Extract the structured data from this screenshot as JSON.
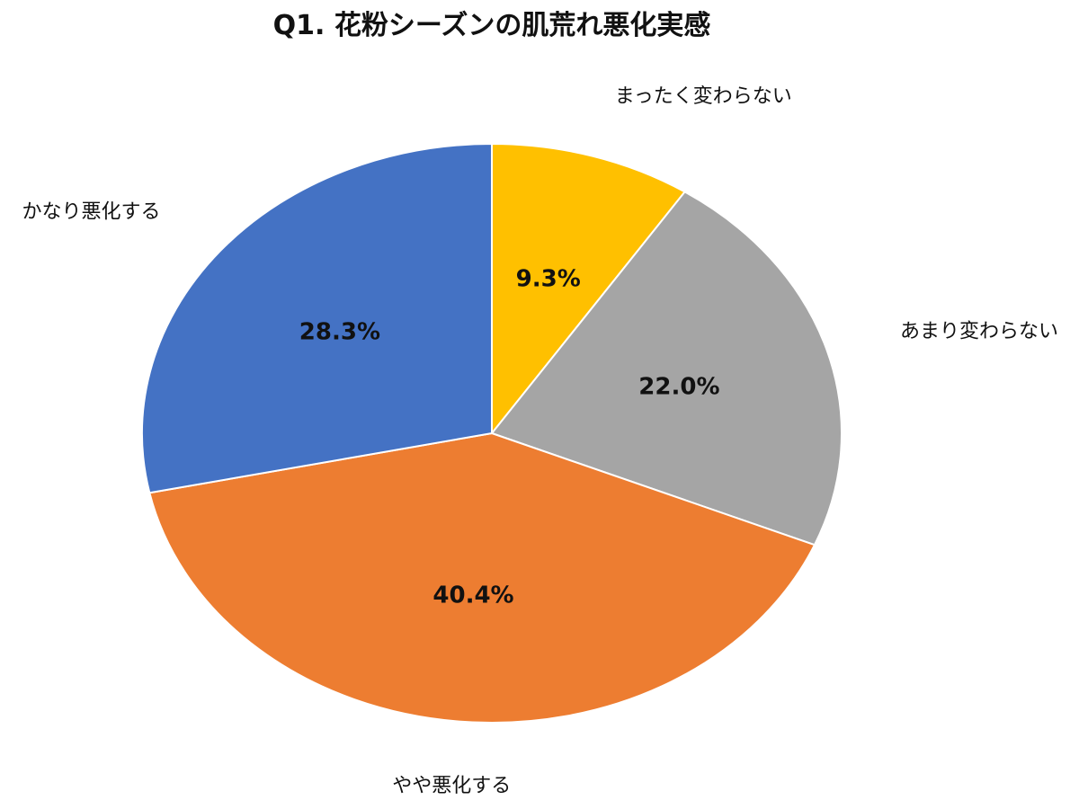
{
  "chart_data": {
    "type": "pie",
    "title": "Q1. 花粉シーズンの肌荒れ悪化実感",
    "slices": [
      {
        "label": "まったく変わらない",
        "value": 9.3,
        "display": "9.3%",
        "color": "#FFC000"
      },
      {
        "label": "あまり変わらない",
        "value": 22.0,
        "display": "22.0%",
        "color": "#A5A5A5"
      },
      {
        "label": "やや悪化する",
        "value": 40.4,
        "display": "40.4%",
        "color": "#ED7D31"
      },
      {
        "label": "かなり悪化する",
        "value": 28.3,
        "display": "28.3%",
        "color": "#4472C4"
      }
    ],
    "start_angle": "12 o'clock",
    "direction": "clockwise",
    "legend": "none",
    "data_labels": "inside",
    "category_labels": "outside"
  }
}
